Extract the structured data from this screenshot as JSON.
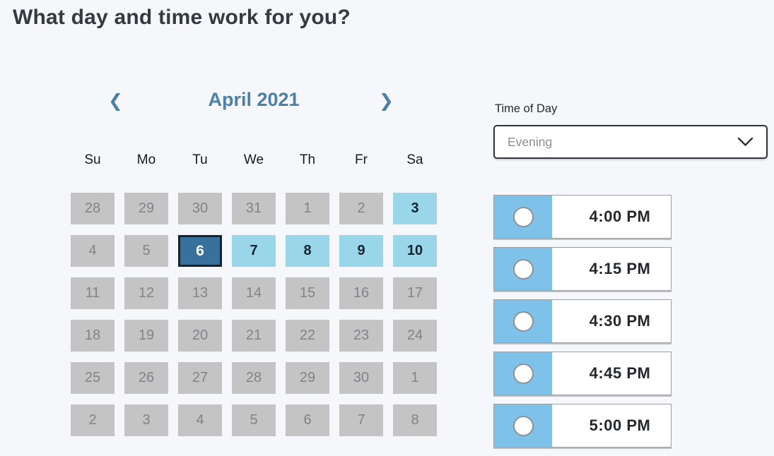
{
  "page": {
    "title": "What day and time work for you?"
  },
  "colors": {
    "page_bg": "#f5f7fa",
    "heading_text": "#333b3f",
    "month_blue": "#4a80ab",
    "day_disabled_bg": "#c4c4c4",
    "day_disabled_text": "#7f8488",
    "day_available_bg": "#9ad6e9",
    "day_selected_bg": "#38719c",
    "day_selected_border": "#16222c",
    "slot_blue": "#7fc2e9",
    "select_border": "#2f343a",
    "select_text": "#8b9095",
    "time_text": "#23282c"
  },
  "calendar": {
    "month_label": "April 2021",
    "prev_icon": "❮",
    "next_icon": "❯",
    "weekdays": [
      "Su",
      "Mo",
      "Tu",
      "We",
      "Th",
      "Fr",
      "Sa"
    ],
    "days": [
      {
        "label": "28",
        "state": "disabled"
      },
      {
        "label": "29",
        "state": "disabled"
      },
      {
        "label": "30",
        "state": "disabled"
      },
      {
        "label": "31",
        "state": "disabled"
      },
      {
        "label": "1",
        "state": "disabled"
      },
      {
        "label": "2",
        "state": "disabled"
      },
      {
        "label": "3",
        "state": "available"
      },
      {
        "label": "4",
        "state": "disabled"
      },
      {
        "label": "5",
        "state": "disabled"
      },
      {
        "label": "6",
        "state": "selected"
      },
      {
        "label": "7",
        "state": "available"
      },
      {
        "label": "8",
        "state": "available"
      },
      {
        "label": "9",
        "state": "available"
      },
      {
        "label": "10",
        "state": "available"
      },
      {
        "label": "11",
        "state": "disabled"
      },
      {
        "label": "12",
        "state": "disabled"
      },
      {
        "label": "13",
        "state": "disabled"
      },
      {
        "label": "14",
        "state": "disabled"
      },
      {
        "label": "15",
        "state": "disabled"
      },
      {
        "label": "16",
        "state": "disabled"
      },
      {
        "label": "17",
        "state": "disabled"
      },
      {
        "label": "18",
        "state": "disabled"
      },
      {
        "label": "19",
        "state": "disabled"
      },
      {
        "label": "20",
        "state": "disabled"
      },
      {
        "label": "21",
        "state": "disabled"
      },
      {
        "label": "22",
        "state": "disabled"
      },
      {
        "label": "23",
        "state": "disabled"
      },
      {
        "label": "24",
        "state": "disabled"
      },
      {
        "label": "25",
        "state": "disabled"
      },
      {
        "label": "26",
        "state": "disabled"
      },
      {
        "label": "27",
        "state": "disabled"
      },
      {
        "label": "28",
        "state": "disabled"
      },
      {
        "label": "29",
        "state": "disabled"
      },
      {
        "label": "30",
        "state": "disabled"
      },
      {
        "label": "1",
        "state": "disabled"
      },
      {
        "label": "2",
        "state": "disabled"
      },
      {
        "label": "3",
        "state": "disabled"
      },
      {
        "label": "4",
        "state": "disabled"
      },
      {
        "label": "5",
        "state": "disabled"
      },
      {
        "label": "6",
        "state": "disabled"
      },
      {
        "label": "7",
        "state": "disabled"
      },
      {
        "label": "8",
        "state": "disabled"
      }
    ]
  },
  "time_of_day": {
    "label": "Time of Day",
    "selected": "Evening"
  },
  "time_slots": [
    {
      "label": "4:00 PM",
      "selected": false
    },
    {
      "label": "4:15 PM",
      "selected": false
    },
    {
      "label": "4:30 PM",
      "selected": false
    },
    {
      "label": "4:45 PM",
      "selected": false
    },
    {
      "label": "5:00 PM",
      "selected": false
    }
  ]
}
